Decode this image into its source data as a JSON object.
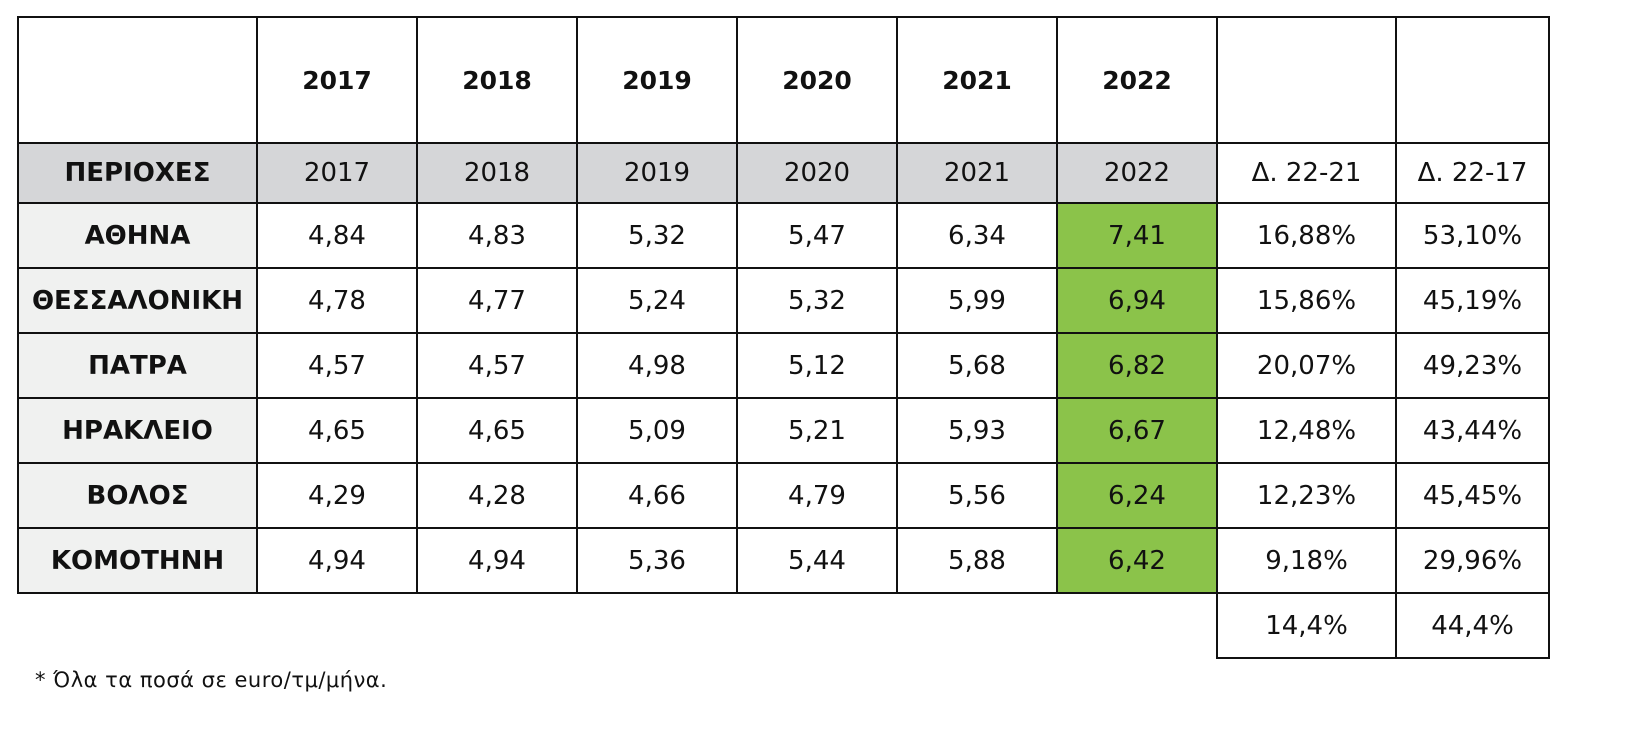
{
  "top_years": [
    "2017",
    "2018",
    "2019",
    "2020",
    "2021",
    "2022"
  ],
  "header": {
    "region_label": "ΠΕΡΙΟΧΕΣ",
    "years": [
      "2017",
      "2018",
      "2019",
      "2020",
      "2021",
      "2022"
    ],
    "delta_1": "Δ. 22-21",
    "delta_2": "Δ. 22-17"
  },
  "rows": [
    {
      "region": "ΑΘΗΝΑ",
      "values": [
        "4,84",
        "4,83",
        "5,32",
        "5,47",
        "6,34",
        "7,41"
      ],
      "delta_1": "16,88%",
      "delta_2": "53,10%"
    },
    {
      "region": "ΘΕΣΣΑΛΟΝΙΚΗ",
      "values": [
        "4,78",
        "4,77",
        "5,24",
        "5,32",
        "5,99",
        "6,94"
      ],
      "delta_1": "15,86%",
      "delta_2": "45,19%"
    },
    {
      "region": "ΠΑΤΡΑ",
      "values": [
        "4,57",
        "4,57",
        "4,98",
        "5,12",
        "5,68",
        "6,82"
      ],
      "delta_1": "20,07%",
      "delta_2": "49,23%"
    },
    {
      "region": "ΗΡΑΚΛΕΙΟ",
      "values": [
        "4,65",
        "4,65",
        "5,09",
        "5,21",
        "5,93",
        "6,67"
      ],
      "delta_1": "12,48%",
      "delta_2": "43,44%"
    },
    {
      "region": "ΒΟΛΟΣ",
      "values": [
        "4,29",
        "4,28",
        "4,66",
        "4,79",
        "5,56",
        "6,24"
      ],
      "delta_1": "12,23%",
      "delta_2": "45,45%"
    },
    {
      "region": "ΚΟΜΟΤΗΝΗ",
      "values": [
        "4,94",
        "4,94",
        "5,36",
        "5,44",
        "5,88",
        "6,42"
      ],
      "delta_1": "9,18%",
      "delta_2": "29,96%"
    }
  ],
  "summary": {
    "delta_1": "14,4%",
    "delta_2": "44,4%"
  },
  "footnote": "* Όλα τα ποσά σε euro/τμ/μήνα.",
  "colors": {
    "highlight": "#8bc34a",
    "header_bg": "#d5d6d8",
    "region_bg": "#f0f1f0"
  }
}
